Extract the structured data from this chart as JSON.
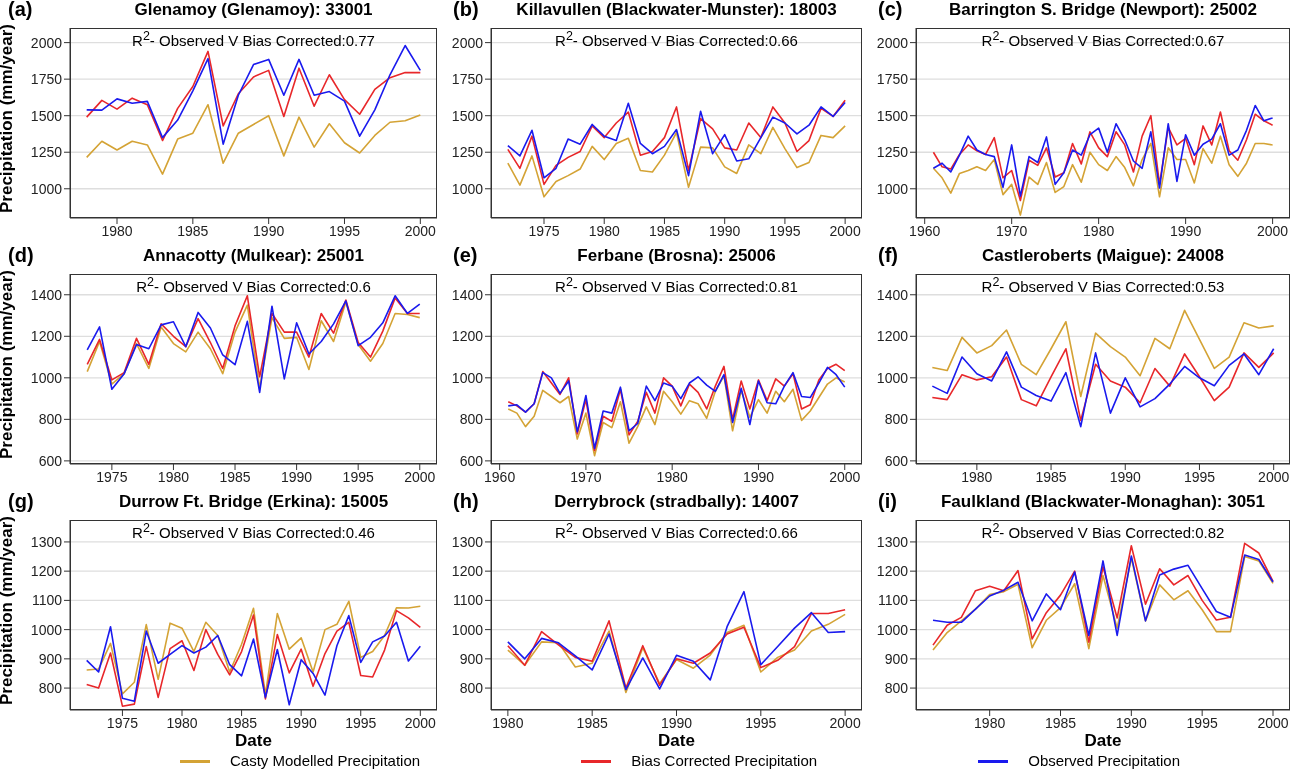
{
  "chart_data": [
    {
      "type": "line",
      "title": "Glenamoy (Glenamoy): 33001",
      "ylabel": "Precipitation (mm/year)",
      "annotations": [
        "(a)",
        "R$^{2}$- Observed V Bias Corrected:0.77"
      ],
      "grid": "y",
      "xlim": [
        1976.9,
        2001.1
      ],
      "xticks": [
        1980,
        1985,
        1990,
        1995,
        2000
      ],
      "ylim": [
        800,
        2100
      ],
      "yticks": [
        1000,
        1250,
        1500,
        1750,
        2000
      ],
      "x": [
        1978,
        1979,
        1980,
        1981,
        1982,
        1983,
        1984,
        1985,
        1986,
        1987,
        1988,
        1989,
        1990,
        1991,
        1992,
        1993,
        1994,
        1995,
        1996,
        1997,
        1998,
        1999,
        2000
      ],
      "series": [
        {
          "color": "#d4a335",
          "values": [
            1215,
            1325,
            1265,
            1325,
            1300,
            1100,
            1340,
            1380,
            1575,
            1175,
            1380,
            1440,
            1500,
            1225,
            1490,
            1285,
            1445,
            1315,
            1245,
            1365,
            1455,
            1465,
            1505
          ]
        },
        {
          "color": "#e8272a",
          "values": [
            1490,
            1605,
            1545,
            1620,
            1575,
            1330,
            1550,
            1700,
            1940,
            1430,
            1650,
            1765,
            1810,
            1495,
            1825,
            1565,
            1780,
            1610,
            1510,
            1680,
            1760,
            1795,
            1795
          ]
        },
        {
          "color": "#1a1aee",
          "values": [
            1540,
            1538,
            1615,
            1585,
            1598,
            1350,
            1470,
            1670,
            1890,
            1305,
            1640,
            1850,
            1885,
            1640,
            1885,
            1640,
            1665,
            1600,
            1360,
            1540,
            1780,
            1980,
            1810
          ]
        }
      ]
    },
    {
      "type": "line",
      "title": "Killavullen (Blackwater-Munster): 18003",
      "annotations": [
        "(b)",
        "R$^{2}$- Observed V Bias Corrected:0.66"
      ],
      "grid": "y",
      "xlim": [
        1970.6,
        2001.4
      ],
      "xticks": [
        1975,
        1980,
        1985,
        1990,
        1995,
        2000
      ],
      "ylim": [
        800,
        2100
      ],
      "yticks": [
        1000,
        1250,
        1500,
        1750,
        2000
      ],
      "x": [
        1972,
        1973,
        1974,
        1975,
        1976,
        1977,
        1978,
        1979,
        1980,
        1981,
        1982,
        1983,
        1984,
        1985,
        1986,
        1987,
        1988,
        1989,
        1990,
        1991,
        1992,
        1993,
        1994,
        1995,
        1996,
        1997,
        1998,
        1999,
        2000
      ],
      "series": [
        {
          "color": "#d4a335",
          "values": [
            1175,
            1025,
            1225,
            945,
            1050,
            1090,
            1135,
            1290,
            1200,
            1310,
            1345,
            1125,
            1115,
            1230,
            1385,
            1010,
            1285,
            1280,
            1150,
            1105,
            1300,
            1240,
            1420,
            1275,
            1145,
            1180,
            1365,
            1350,
            1430
          ]
        },
        {
          "color": "#e8272a",
          "values": [
            1270,
            1140,
            1360,
            1030,
            1160,
            1215,
            1255,
            1430,
            1350,
            1450,
            1525,
            1230,
            1255,
            1350,
            1560,
            1125,
            1480,
            1410,
            1280,
            1265,
            1450,
            1350,
            1560,
            1450,
            1255,
            1330,
            1550,
            1495,
            1605
          ]
        },
        {
          "color": "#1a1aee",
          "values": [
            1295,
            1225,
            1400,
            1075,
            1140,
            1340,
            1305,
            1440,
            1360,
            1330,
            1585,
            1310,
            1240,
            1290,
            1405,
            1090,
            1530,
            1240,
            1370,
            1190,
            1205,
            1350,
            1490,
            1450,
            1375,
            1435,
            1560,
            1495,
            1590
          ]
        }
      ]
    },
    {
      "type": "line",
      "title": "Barrington S. Bridge (Newport): 25002",
      "annotations": [
        "(c)",
        "R$^{2}$- Observed V Bias Corrected:0.67"
      ],
      "grid": "y",
      "xlim": [
        1959,
        2002
      ],
      "xticks": [
        1960,
        1970,
        1980,
        1990,
        2000
      ],
      "ylim": [
        800,
        2100
      ],
      "yticks": [
        1000,
        1250,
        1500,
        1750,
        2000
      ],
      "x": [
        1961,
        1962,
        1963,
        1964,
        1965,
        1966,
        1967,
        1968,
        1969,
        1970,
        1971,
        1972,
        1973,
        1974,
        1975,
        1976,
        1977,
        1978,
        1979,
        1980,
        1981,
        1982,
        1983,
        1984,
        1985,
        1986,
        1987,
        1988,
        1989,
        1990,
        1991,
        1992,
        1993,
        1994,
        1995,
        1996,
        1997,
        1998,
        1999,
        2000
      ],
      "series": [
        {
          "color": "#d4a335",
          "values": [
            1140,
            1075,
            970,
            1105,
            1125,
            1150,
            1125,
            1200,
            960,
            1030,
            820,
            1080,
            1030,
            1180,
            975,
            1015,
            1165,
            1045,
            1250,
            1165,
            1125,
            1220,
            1145,
            1020,
            1200,
            1310,
            945,
            1280,
            1200,
            1200,
            1040,
            1275,
            1175,
            1360,
            1165,
            1085,
            1175,
            1310,
            1310,
            1300
          ]
        },
        {
          "color": "#e8272a",
          "values": [
            1250,
            1150,
            1135,
            1235,
            1300,
            1260,
            1235,
            1350,
            1075,
            1125,
            920,
            1195,
            1160,
            1280,
            1080,
            1110,
            1310,
            1170,
            1390,
            1280,
            1220,
            1390,
            1300,
            1115,
            1360,
            1500,
            1030,
            1420,
            1300,
            1345,
            1165,
            1430,
            1300,
            1525,
            1260,
            1195,
            1335,
            1510,
            1465,
            1435
          ]
        },
        {
          "color": "#1a1aee",
          "values": [
            1140,
            1175,
            1115,
            1230,
            1360,
            1265,
            1235,
            1220,
            1010,
            1300,
            950,
            1220,
            1180,
            1355,
            1030,
            1110,
            1265,
            1230,
            1370,
            1415,
            1250,
            1445,
            1335,
            1190,
            1140,
            1390,
            1005,
            1445,
            1050,
            1370,
            1230,
            1305,
            1340,
            1445,
            1230,
            1265,
            1400,
            1570,
            1465,
            1485
          ]
        }
      ]
    },
    {
      "type": "line",
      "title": "Annacotty (Mulkear): 25001",
      "ylabel": "Precipitation (mm/year)",
      "annotations": [
        "(d)",
        "R$^{2}$- Observed V Bias Corrected:0.6"
      ],
      "grid": "y",
      "xlim": [
        1971.6,
        2001.4
      ],
      "xticks": [
        1975,
        1980,
        1985,
        1990,
        1995,
        2000
      ],
      "ylim": [
        585,
        1500
      ],
      "yticks": [
        600,
        800,
        1000,
        1200,
        1400
      ],
      "x": [
        1973,
        1974,
        1975,
        1976,
        1977,
        1978,
        1979,
        1980,
        1981,
        1982,
        1983,
        1984,
        1985,
        1986,
        1987,
        1988,
        1989,
        1990,
        1991,
        1992,
        1993,
        1994,
        1995,
        1996,
        1997,
        1998,
        1999,
        2000
      ],
      "series": [
        {
          "color": "#d4a335",
          "values": [
            1030,
            1175,
            970,
            1020,
            1165,
            1045,
            1245,
            1165,
            1125,
            1220,
            1140,
            1020,
            1220,
            1350,
            950,
            1290,
            1190,
            1195,
            1040,
            1275,
            1175,
            1365,
            1160,
            1080,
            1165,
            1310,
            1305,
            1290
          ]
        },
        {
          "color": "#e8272a",
          "values": [
            1065,
            1185,
            990,
            1025,
            1190,
            1065,
            1260,
            1200,
            1150,
            1285,
            1170,
            1045,
            1250,
            1395,
            1005,
            1310,
            1220,
            1220,
            1100,
            1310,
            1215,
            1375,
            1170,
            1100,
            1225,
            1385,
            1310,
            1310
          ]
        },
        {
          "color": "#1a1aee",
          "values": [
            1135,
            1245,
            945,
            1020,
            1160,
            1140,
            1255,
            1270,
            1150,
            1315,
            1240,
            1110,
            1063,
            1272,
            930,
            1345,
            995,
            1265,
            1115,
            1175,
            1260,
            1370,
            1155,
            1195,
            1265,
            1395,
            1310,
            1355
          ]
        }
      ]
    },
    {
      "type": "line",
      "title": "Ferbane (Brosna): 25006",
      "annotations": [
        "(e)",
        "R$^{2}$- Observed V Bias Corrected:0.81"
      ],
      "grid": "y",
      "xlim": [
        1959,
        2002
      ],
      "xticks": [
        1960,
        1970,
        1980,
        1990,
        2000
      ],
      "ylim": [
        585,
        1500
      ],
      "yticks": [
        600,
        800,
        1000,
        1200,
        1400
      ],
      "x": [
        1961,
        1962,
        1963,
        1964,
        1965,
        1966,
        1967,
        1968,
        1969,
        1970,
        1971,
        1972,
        1973,
        1974,
        1975,
        1976,
        1977,
        1978,
        1979,
        1980,
        1981,
        1982,
        1983,
        1984,
        1985,
        1986,
        1987,
        1988,
        1989,
        1990,
        1991,
        1992,
        1993,
        1994,
        1995,
        1996,
        1997,
        1998,
        1999,
        2000
      ],
      "series": [
        {
          "color": "#d4a335",
          "values": [
            850,
            830,
            765,
            815,
            940,
            910,
            880,
            910,
            705,
            830,
            625,
            785,
            760,
            885,
            685,
            765,
            860,
            775,
            935,
            885,
            825,
            890,
            875,
            805,
            935,
            1010,
            745,
            940,
            810,
            895,
            830,
            935,
            885,
            945,
            795,
            840,
            905,
            970,
            1000,
            980
          ]
        },
        {
          "color": "#e8272a",
          "values": [
            885,
            865,
            835,
            875,
            1030,
            975,
            920,
            1000,
            730,
            895,
            650,
            815,
            790,
            945,
            725,
            790,
            930,
            830,
            1000,
            960,
            865,
            970,
            930,
            850,
            960,
            1055,
            800,
            985,
            850,
            990,
            890,
            995,
            960,
            1020,
            850,
            870,
            990,
            1045,
            1065,
            1035
          ]
        },
        {
          "color": "#1a1aee",
          "values": [
            865,
            870,
            835,
            875,
            1025,
            1000,
            925,
            985,
            740,
            915,
            660,
            840,
            830,
            955,
            745,
            780,
            960,
            890,
            975,
            960,
            900,
            975,
            1005,
            965,
            935,
            1015,
            785,
            950,
            775,
            985,
            880,
            875,
            960,
            1025,
            910,
            905,
            975,
            1050,
            1015,
            955
          ]
        }
      ]
    },
    {
      "type": "line",
      "title": "Castleroberts (Maigue): 24008",
      "annotations": [
        "(f)",
        "R$^{2}$- Observed V Bias Corrected:0.53"
      ],
      "grid": "y",
      "xlim": [
        1975.9,
        2001.1
      ],
      "xticks": [
        1980,
        1985,
        1990,
        1995,
        2000
      ],
      "ylim": [
        585,
        1500
      ],
      "yticks": [
        600,
        800,
        1000,
        1200,
        1400
      ],
      "x": [
        1977,
        1978,
        1979,
        1980,
        1981,
        1982,
        1983,
        1984,
        1985,
        1986,
        1987,
        1988,
        1989,
        1990,
        1991,
        1992,
        1993,
        1994,
        1995,
        1996,
        1997,
        1998,
        1999,
        2000
      ],
      "series": [
        {
          "color": "#d4a335",
          "values": [
            1050,
            1035,
            1195,
            1120,
            1155,
            1230,
            1065,
            1015,
            1140,
            1270,
            910,
            1215,
            1150,
            1100,
            1010,
            1190,
            1140,
            1325,
            1185,
            1045,
            1100,
            1265,
            1240,
            1250
          ]
        },
        {
          "color": "#e8272a",
          "values": [
            905,
            895,
            1015,
            990,
            1005,
            1100,
            895,
            865,
            1005,
            1140,
            795,
            1065,
            985,
            955,
            880,
            1045,
            960,
            1115,
            1005,
            890,
            955,
            1120,
            1050,
            1120
          ]
        },
        {
          "color": "#1a1aee",
          "values": [
            960,
            925,
            1100,
            1020,
            985,
            1125,
            955,
            915,
            888,
            1025,
            765,
            1120,
            830,
            1000,
            860,
            900,
            970,
            1055,
            1000,
            962,
            1060,
            1115,
            1015,
            1140
          ]
        }
      ]
    },
    {
      "type": "line",
      "title": "Durrow Ft. Bridge (Erkina): 15005",
      "xlabel": "Date",
      "ylabel": "Precipitation (mm/year)",
      "annotations": [
        "(g)",
        "R$^{2}$- Observed V Bias Corrected:0.46"
      ],
      "grid": "y",
      "xlim": [
        1970.6,
        2001.4
      ],
      "xticks": [
        1975,
        1980,
        1985,
        1990,
        1995,
        2000
      ],
      "ylim": [
        725,
        1375
      ],
      "yticks": [
        800,
        900,
        1000,
        1100,
        1200,
        1300
      ],
      "x": [
        1972,
        1973,
        1974,
        1975,
        1976,
        1977,
        1978,
        1979,
        1980,
        1981,
        1982,
        1983,
        1984,
        1985,
        1986,
        1987,
        1988,
        1989,
        1990,
        1991,
        1992,
        1993,
        1994,
        1995,
        1996,
        1997,
        1998,
        1999,
        2000
      ],
      "series": [
        {
          "color": "#d4a335",
          "values": [
            862,
            865,
            953,
            780,
            820,
            1017,
            830,
            1022,
            1005,
            925,
            1025,
            980,
            855,
            950,
            1073,
            778,
            1055,
            933,
            972,
            855,
            1000,
            1018,
            1097,
            905,
            925,
            980,
            1075,
            1074,
            1080
          ]
        },
        {
          "color": "#e8272a",
          "values": [
            812,
            800,
            920,
            738,
            745,
            942,
            768,
            935,
            962,
            860,
            1000,
            915,
            845,
            925,
            1050,
            763,
            983,
            852,
            933,
            806,
            918,
            995,
            1025,
            843,
            838,
            930,
            1065,
            1040,
            1008
          ]
        },
        {
          "color": "#1a1aee",
          "values": [
            895,
            855,
            1010,
            765,
            755,
            995,
            885,
            915,
            945,
            920,
            940,
            980,
            880,
            842,
            968,
            768,
            932,
            743,
            897,
            850,
            776,
            945,
            1048,
            888,
            958,
            978,
            1025,
            893,
            943
          ]
        }
      ]
    },
    {
      "type": "line",
      "title": "Derrybrock (stradbally): 14007",
      "xlabel": "Date",
      "annotations": [
        "(h)",
        "R$^{2}$- Observed V Bias Corrected:0.66"
      ],
      "grid": "y",
      "legend": "bottom",
      "xlim": [
        1979,
        2001
      ],
      "xticks": [
        1980,
        1985,
        1990,
        1995,
        2000
      ],
      "ylim": [
        725,
        1375
      ],
      "yticks": [
        800,
        900,
        1000,
        1100,
        1200,
        1300
      ],
      "x": [
        1980,
        1981,
        1982,
        1983,
        1984,
        1985,
        1986,
        1987,
        1988,
        1989,
        1990,
        1991,
        1992,
        1993,
        1994,
        1995,
        1996,
        1997,
        1998,
        1999,
        2000
      ],
      "series": [
        {
          "name": "Casty Modelled Precipitation",
          "color": "#d4a335",
          "values": [
            930,
            878,
            958,
            955,
            872,
            885,
            995,
            785,
            938,
            815,
            898,
            868,
            913,
            990,
            1015,
            855,
            905,
            930,
            995,
            1018,
            1052
          ]
        },
        {
          "name": "Bias Corrected Precipitation",
          "color": "#e8272a",
          "values": [
            945,
            878,
            993,
            948,
            905,
            892,
            1030,
            800,
            945,
            810,
            900,
            885,
            920,
            985,
            1008,
            870,
            895,
            942,
            1055,
            1055,
            1068
          ]
        },
        {
          "name": "Observed Precipitation",
          "color": "#1a1aee",
          "values": [
            958,
            900,
            970,
            955,
            910,
            862,
            985,
            795,
            903,
            797,
            912,
            892,
            828,
            1010,
            1130,
            880,
            942,
            1005,
            1058,
            990,
            993
          ]
        }
      ]
    },
    {
      "type": "line",
      "title": "Faulkland (Blackwater-Monaghan): 3051",
      "xlabel": "Date",
      "annotations": [
        "(i)",
        "R$^{2}$- Observed V Bias Corrected:0.82"
      ],
      "grid": "y",
      "xlim": [
        1974.8,
        2001.2
      ],
      "xticks": [
        1980,
        1985,
        1990,
        1995,
        2000
      ],
      "ylim": [
        725,
        1375
      ],
      "yticks": [
        800,
        900,
        1000,
        1100,
        1200,
        1300
      ],
      "x": [
        1976,
        1977,
        1978,
        1979,
        1980,
        1981,
        1982,
        1983,
        1984,
        1985,
        1986,
        1987,
        1988,
        1989,
        1990,
        1991,
        1992,
        1993,
        1994,
        1995,
        1996,
        1997,
        1998,
        1999,
        2000
      ],
      "series": [
        {
          "color": "#d4a335",
          "values": [
            930,
            990,
            1030,
            1070,
            1120,
            1130,
            1155,
            938,
            1032,
            1075,
            1157,
            935,
            1185,
            1005,
            1245,
            1030,
            1153,
            1102,
            1133,
            1068,
            993,
            993,
            1250,
            1235,
            1158
          ]
        },
        {
          "color": "#e8272a",
          "values": [
            947,
            1015,
            1042,
            1133,
            1148,
            1133,
            1202,
            968,
            1058,
            1118,
            1200,
            957,
            1215,
            1040,
            1287,
            1087,
            1208,
            1153,
            1185,
            1100,
            1033,
            1042,
            1295,
            1262,
            1165
          ]
        },
        {
          "color": "#1a1aee",
          "values": [
            1032,
            1025,
            1025,
            1070,
            1115,
            1135,
            1162,
            1030,
            1122,
            1068,
            1197,
            980,
            1235,
            980,
            1252,
            1030,
            1187,
            1207,
            1220,
            1140,
            1062,
            1042,
            1255,
            1240,
            1163
          ]
        }
      ]
    }
  ]
}
